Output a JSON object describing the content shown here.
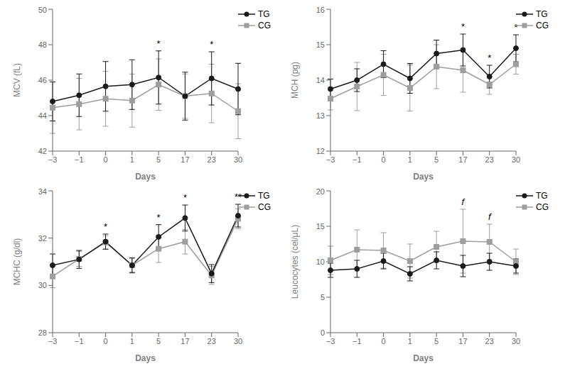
{
  "chart_data": [
    {
      "type": "line",
      "x_label": "Days",
      "y_label": "MCV (fL)",
      "categories": [
        "−3",
        "−1",
        "0",
        "1",
        "5",
        "17",
        "23",
        "30"
      ],
      "ylim": [
        42,
        50
      ],
      "yticks": [
        42,
        44,
        46,
        48,
        50
      ],
      "grid": false,
      "legend": "upper right",
      "series": [
        {
          "name": "TG",
          "color": "#1a1a1a",
          "marker": "circle",
          "values": [
            44.8,
            45.15,
            45.65,
            45.75,
            46.15,
            45.1,
            46.1,
            45.5
          ],
          "errors": [
            1.1,
            1.2,
            1.4,
            1.4,
            1.5,
            1.35,
            1.5,
            1.45
          ]
        },
        {
          "name": "CG",
          "color": "#9e9e9e",
          "marker": "square",
          "values": [
            44.45,
            44.65,
            44.95,
            44.85,
            45.75,
            45.1,
            45.25,
            44.25
          ],
          "errors": [
            1.45,
            1.45,
            1.55,
            1.5,
            1.45,
            1.25,
            1.65,
            1.55
          ]
        }
      ],
      "annotations": [
        {
          "x": "5",
          "text": "*"
        },
        {
          "x": "23",
          "text": "*"
        }
      ]
    },
    {
      "type": "line",
      "x_label": "Days",
      "y_label": "MCH (pg)",
      "categories": [
        "−3",
        "−1",
        "0",
        "1",
        "5",
        "17",
        "23",
        "30"
      ],
      "ylim": [
        12,
        16
      ],
      "yticks": [
        12,
        13,
        14,
        15,
        16
      ],
      "grid": false,
      "legend": "upper right",
      "series": [
        {
          "name": "TG",
          "color": "#1a1a1a",
          "marker": "circle",
          "values": [
            13.75,
            14.0,
            14.45,
            14.05,
            14.75,
            14.85,
            14.1,
            14.9
          ],
          "errors": [
            0.28,
            0.32,
            0.38,
            0.42,
            0.38,
            0.45,
            0.32,
            0.38
          ]
        },
        {
          "name": "CG",
          "color": "#9e9e9e",
          "marker": "square",
          "values": [
            13.48,
            13.82,
            14.15,
            13.78,
            14.38,
            14.28,
            13.88,
            14.45
          ],
          "errors": [
            0.32,
            0.68,
            0.58,
            0.65,
            0.62,
            0.62,
            0.28,
            0.28
          ]
        }
      ],
      "annotations": [
        {
          "x": "17",
          "text": "*"
        },
        {
          "x": "23",
          "text": "*"
        },
        {
          "x": "30",
          "text": "*"
        }
      ]
    },
    {
      "type": "line",
      "x_label": "Days",
      "y_label": "MCHC (g/dl)",
      "categories": [
        "−3",
        "−1",
        "0",
        "1",
        "5",
        "17",
        "23",
        "30"
      ],
      "ylim": [
        28,
        34
      ],
      "yticks": [
        28,
        30,
        32,
        34
      ],
      "grid": false,
      "legend": "upper right",
      "series": [
        {
          "name": "TG",
          "color": "#1a1a1a",
          "marker": "circle",
          "values": [
            30.85,
            31.1,
            31.85,
            30.85,
            32.05,
            32.85,
            30.5,
            32.95
          ],
          "errors": [
            0.48,
            0.38,
            0.32,
            0.32,
            0.52,
            0.55,
            0.38,
            0.48
          ]
        },
        {
          "name": "CG",
          "color": "#9e9e9e",
          "marker": "square",
          "values": [
            30.38,
            31.12,
            31.82,
            30.85,
            31.55,
            31.85,
            30.42,
            32.82
          ],
          "errors": [
            0.48,
            0.32,
            0.28,
            0.28,
            0.58,
            0.52,
            0.38,
            0.42
          ]
        }
      ],
      "annotations": [
        {
          "x": "0",
          "text": "*"
        },
        {
          "x": "5",
          "text": "*"
        },
        {
          "x": "17",
          "text": "*"
        },
        {
          "x": "30",
          "text": "**"
        }
      ]
    },
    {
      "type": "line",
      "x_label": "Days",
      "y_label": "Leucocytes (cel/μL)",
      "categories": [
        "−3",
        "−1",
        "0",
        "1",
        "5",
        "17",
        "23",
        "30"
      ],
      "ylim": [
        0,
        20
      ],
      "yticks": [
        0,
        5,
        10,
        15,
        20
      ],
      "grid": false,
      "legend": "upper right",
      "series": [
        {
          "name": "TG",
          "color": "#1a1a1a",
          "marker": "circle",
          "values": [
            8.8,
            9.0,
            10.1,
            8.3,
            10.2,
            9.4,
            10.0,
            9.4
          ],
          "errors": [
            1.0,
            1.2,
            1.1,
            1.0,
            1.2,
            1.5,
            1.2,
            1.0
          ]
        },
        {
          "name": "CG",
          "color": "#9e9e9e",
          "marker": "square",
          "values": [
            10.2,
            11.7,
            11.6,
            10.1,
            12.1,
            12.9,
            12.8,
            10.0
          ],
          "errors": [
            2.0,
            2.8,
            2.5,
            2.4,
            2.2,
            4.5,
            2.5,
            1.8
          ]
        }
      ],
      "annotations": [
        {
          "x": "17",
          "text": "f"
        },
        {
          "x": "23",
          "text": "f"
        }
      ]
    }
  ]
}
